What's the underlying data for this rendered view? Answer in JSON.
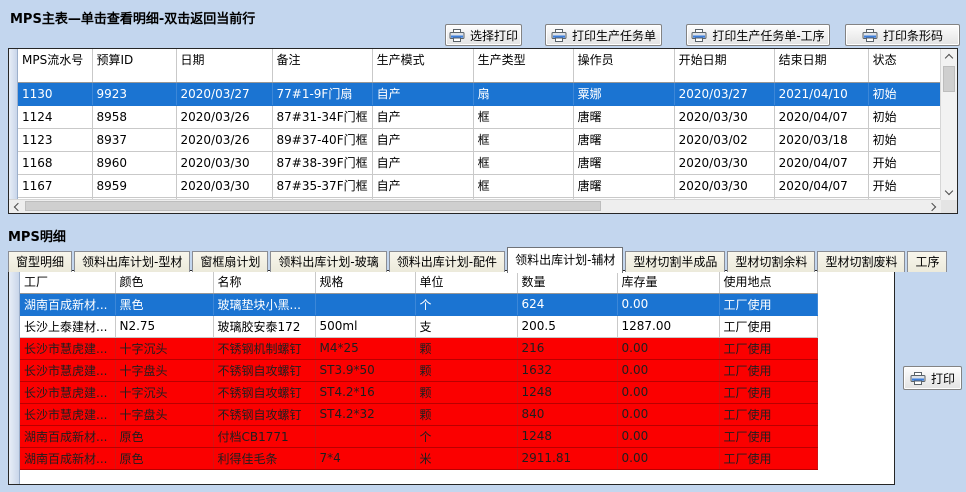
{
  "colors": {
    "window_bg": "#c3d6ee",
    "selected_row_bg": "#1b74d2",
    "selected_row_text": "#ffffff",
    "alert_row_bg": "#fb0000",
    "printer_icon_accent": "#3d7edb"
  },
  "main_panel": {
    "title": "MPS主表—单击查看明细-双击返回当前行",
    "toolbar": {
      "buttons": [
        {
          "icon": "printer-icon",
          "label": "选择打印"
        },
        {
          "icon": "printer-icon",
          "label": "打印生产任务单"
        },
        {
          "icon": "printer-icon",
          "label": "打印生产任务单-工序"
        },
        {
          "icon": "printer-icon",
          "label": "打印条形码"
        }
      ]
    },
    "table": {
      "columns": [
        "MPS流水号",
        "预算ID",
        "日期",
        "备注",
        "生产模式",
        "生产类型",
        "操作员",
        "开始日期",
        "结束日期",
        "状态"
      ],
      "rows": [
        {
          "state": "selected",
          "cells": [
            "1130",
            "9923",
            "2020/03/27",
            "77#1-9F门扇",
            "自产",
            "扇",
            "粟娜",
            "2020/03/27",
            "2021/04/10",
            "初始"
          ]
        },
        {
          "state": "normal",
          "cells": [
            "1124",
            "8958",
            "2020/03/26",
            "87#31-34F门框",
            "自产",
            "框",
            "唐曙",
            "2020/03/30",
            "2020/04/07",
            "初始"
          ]
        },
        {
          "state": "normal",
          "cells": [
            "1123",
            "8937",
            "2020/03/26",
            "89#37-40F门框",
            "自产",
            "框",
            "唐曙",
            "2020/03/02",
            "2020/03/18",
            "初始"
          ]
        },
        {
          "state": "normal",
          "cells": [
            "1168",
            "8960",
            "2020/03/30",
            "87#38-39F门框",
            "自产",
            "框",
            "唐曙",
            "2020/03/30",
            "2020/04/07",
            "开始"
          ]
        },
        {
          "state": "normal",
          "cells": [
            "1167",
            "8959",
            "2020/03/30",
            "87#35-37F门框",
            "自产",
            "框",
            "唐曙",
            "2020/03/30",
            "2020/04/07",
            "开始"
          ]
        },
        {
          "state": "partial",
          "cells": [
            "",
            "",
            "",
            "",
            "",
            "",
            "",
            "",
            "",
            ""
          ]
        }
      ]
    }
  },
  "detail_panel": {
    "title": "MPS明细",
    "tabs": {
      "items": [
        "窗型明细",
        "领料出库计划-型材",
        "窗框扇计划",
        "领料出库计划-玻璃",
        "领料出库计划-配件",
        "领料出库计划-辅材",
        "型材切割半成品",
        "型材切割余料",
        "型材切割废料",
        "工序"
      ],
      "active": "领料出库计划-辅材"
    },
    "table": {
      "columns": [
        "工厂",
        "颜色",
        "名称",
        "规格",
        "单位",
        "数量",
        "库存量",
        "使用地点"
      ],
      "rows": [
        {
          "state": "selected",
          "cells": [
            "湖南百成新材...",
            "黑色",
            "玻璃垫块小黑...",
            "",
            "个",
            "624",
            "0.00",
            "工厂使用"
          ]
        },
        {
          "state": "normal",
          "cells": [
            "长沙上泰建材...",
            "N2.75",
            "玻璃胶安泰172",
            "500ml",
            "支",
            "200.5",
            "1287.00",
            "工厂使用"
          ]
        },
        {
          "state": "alert",
          "cells": [
            "长沙市慧虎建...",
            "十字沉头",
            "不锈钢机制螺钉",
            "M4*25",
            "颗",
            "216",
            "0.00",
            "工厂使用"
          ]
        },
        {
          "state": "alert",
          "cells": [
            "长沙市慧虎建...",
            "十字盘头",
            "不锈钢自攻螺钉",
            "ST3.9*50",
            "颗",
            "1632",
            "0.00",
            "工厂使用"
          ]
        },
        {
          "state": "alert",
          "cells": [
            "长沙市慧虎建...",
            "十字沉头",
            "不锈钢自攻螺钉",
            "ST4.2*16",
            "颗",
            "1248",
            "0.00",
            "工厂使用"
          ]
        },
        {
          "state": "alert",
          "cells": [
            "长沙市慧虎建...",
            "十字盘头",
            "不锈钢自攻螺钉",
            "ST4.2*32",
            "颗",
            "840",
            "0.00",
            "工厂使用"
          ]
        },
        {
          "state": "alert",
          "cells": [
            "湖南百成新材...",
            "原色",
            "付档CB1771",
            "",
            "个",
            "1248",
            "0.00",
            "工厂使用"
          ]
        },
        {
          "state": "alert",
          "cells": [
            "湖南百成新材...",
            "原色",
            "利得佳毛条",
            "7*4",
            "米",
            "2911.81",
            "0.00",
            "工厂使用"
          ]
        }
      ]
    },
    "print_button_label": "打印"
  }
}
